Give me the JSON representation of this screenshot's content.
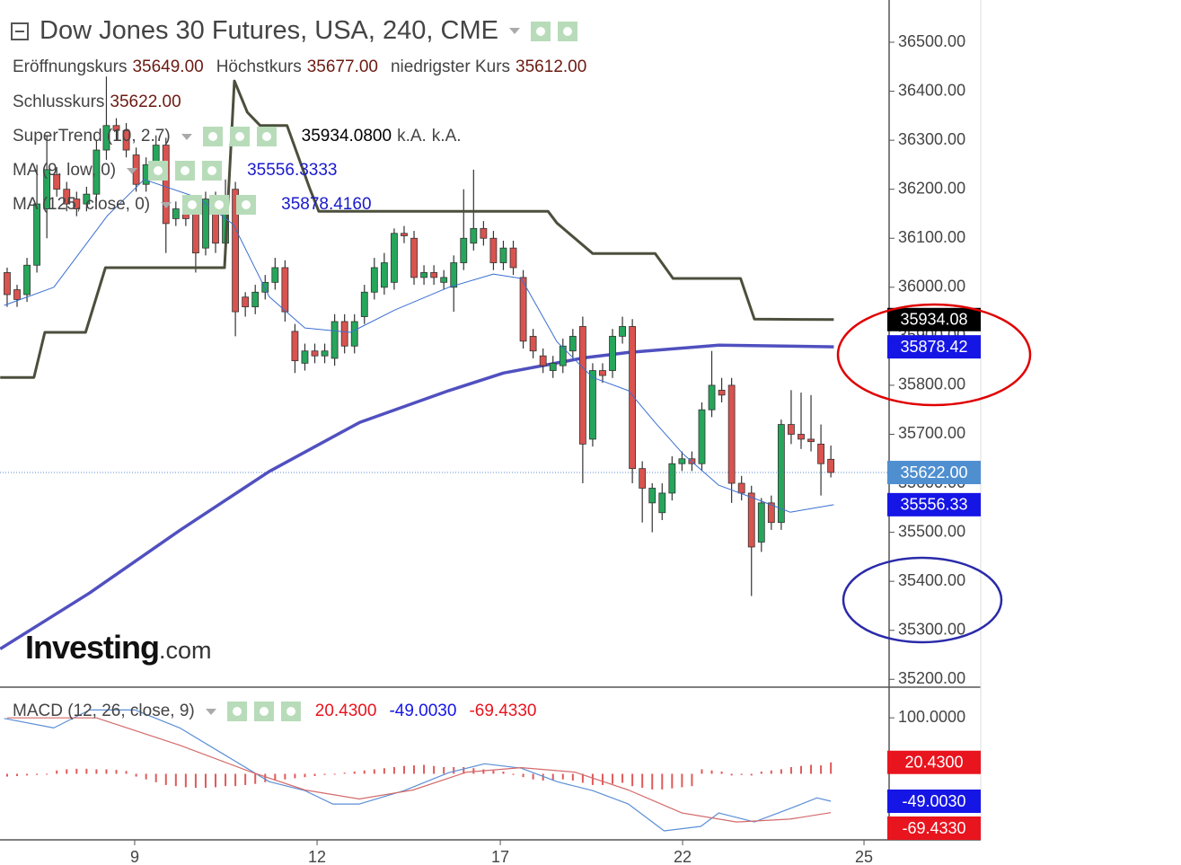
{
  "chart_data": {
    "type": "candlestick",
    "title": "Dow Jones 30 Futures, USA, 240, CME",
    "info": [
      {
        "name": "Eröffnungskurs",
        "value": 35649,
        "value_label": "35649.00"
      },
      {
        "name": "Höchstkurs",
        "value": 35677,
        "value_label": "35677.00"
      },
      {
        "name": "niedrigster Kurs",
        "value": 35612,
        "value_label": "35612.00"
      },
      {
        "name": "Schlusskurs",
        "value": 35622,
        "value_label": "35622.00"
      }
    ],
    "x": [
      0,
      1,
      2,
      3,
      4,
      5,
      6,
      7,
      8,
      9,
      10,
      11,
      12,
      13,
      14,
      15,
      16,
      17,
      18,
      19,
      20,
      21,
      22,
      23,
      24,
      25,
      26,
      27,
      28,
      29,
      30,
      31,
      32,
      33,
      34,
      35,
      36,
      37,
      38,
      39,
      40,
      41,
      42,
      43,
      44,
      45,
      46,
      47,
      48,
      49,
      50,
      51,
      52,
      53,
      54,
      55,
      56,
      57,
      58,
      59,
      60,
      61,
      62,
      63,
      64,
      65,
      66,
      67,
      68,
      69,
      70,
      71,
      72,
      73,
      74,
      75,
      76,
      77,
      78,
      79,
      80,
      81,
      82,
      83
    ],
    "open": [
      36030,
      35995,
      35985,
      36045,
      36160,
      36230,
      36200,
      36180,
      36170,
      36190,
      36280,
      36330,
      36320,
      36270,
      36210,
      36250,
      36290,
      36140,
      36150,
      36150,
      36080,
      36180,
      36090,
      36200,
      35980,
      35960,
      35990,
      36010,
      36040,
      35910,
      35845,
      35870,
      35860,
      35855,
      35930,
      35880,
      35940,
      35990,
      36000,
      36010,
      36110,
      36100,
      36020,
      36030,
      36010,
      36000,
      36050,
      36090,
      36120,
      36100,
      36050,
      36080,
      36020,
      35900,
      35860,
      35830,
      35840,
      35870,
      35920,
      35690,
      35830,
      35830,
      35900,
      35920,
      35630,
      35560,
      35540,
      35580,
      35640,
      35650,
      35640,
      35750,
      35790,
      35800,
      35600,
      35580,
      35480,
      35560,
      35520,
      35720,
      35700,
      35690,
      35680,
      35649
    ],
    "high": [
      36040,
      36005,
      36060,
      36250,
      36310,
      36245,
      36215,
      36195,
      36205,
      36300,
      36430,
      36345,
      36335,
      36285,
      36265,
      36310,
      36305,
      36175,
      36165,
      36165,
      36195,
      36195,
      36220,
      36215,
      35990,
      36005,
      36025,
      36060,
      36055,
      35925,
      35885,
      35885,
      35885,
      35945,
      35945,
      35945,
      36005,
      36060,
      36070,
      36120,
      36125,
      36115,
      36045,
      36045,
      36035,
      36065,
      36200,
      36240,
      36135,
      36115,
      36095,
      36095,
      36035,
      35915,
      35875,
      35860,
      35895,
      35915,
      35940,
      35845,
      35845,
      35915,
      35940,
      35935,
      35645,
      35600,
      35600,
      35655,
      35665,
      35665,
      35765,
      35870,
      35815,
      35815,
      35615,
      35595,
      35570,
      35575,
      35730,
      35790,
      35785,
      35780,
      35720,
      35677
    ],
    "low": [
      35960,
      35960,
      35970,
      36030,
      36100,
      36185,
      36155,
      36145,
      36155,
      36175,
      36260,
      36300,
      36265,
      36195,
      36195,
      36235,
      36070,
      36125,
      36125,
      36030,
      36065,
      36070,
      36075,
      35900,
      35940,
      35945,
      35975,
      35995,
      35930,
      35825,
      35830,
      35845,
      35845,
      35840,
      35865,
      35865,
      35925,
      35975,
      35985,
      35995,
      36090,
      36005,
      36005,
      36005,
      35995,
      35950,
      36035,
      36075,
      36085,
      36035,
      36035,
      36025,
      35875,
      35855,
      35825,
      35815,
      35825,
      35855,
      35600,
      35675,
      35805,
      35815,
      35885,
      35600,
      35520,
      35500,
      35525,
      35565,
      35625,
      35625,
      35625,
      35735,
      35765,
      35560,
      35565,
      35370,
      35460,
      35505,
      35505,
      35680,
      35670,
      35665,
      35575,
      35612
    ],
    "close": [
      35985,
      35975,
      36045,
      36170,
      36240,
      36200,
      36170,
      36160,
      36190,
      36280,
      36330,
      36320,
      36280,
      36210,
      36250,
      36290,
      36130,
      36160,
      36140,
      36070,
      36180,
      36090,
      36170,
      35950,
      35960,
      35990,
      36010,
      36040,
      35950,
      35850,
      35870,
      35860,
      35870,
      35930,
      35880,
      35930,
      35990,
      36040,
      36050,
      36110,
      36105,
      36020,
      36030,
      36020,
      36020,
      36050,
      36100,
      36120,
      36100,
      36050,
      36080,
      36040,
      35890,
      35870,
      35840,
      35845,
      35880,
      35900,
      35680,
      35830,
      35820,
      35900,
      35920,
      35630,
      35590,
      35590,
      35580,
      35640,
      35650,
      35640,
      35750,
      35800,
      35780,
      35600,
      35580,
      35470,
      35560,
      35520,
      35720,
      35700,
      35690,
      35685,
      35640,
      35622
    ],
    "up_color": "#26a65b",
    "down_color": "#d9534f",
    "lines": [
      {
        "name": "SuperTrend (10, 2.7)",
        "color": "#4b4f3c",
        "width": 3,
        "x": [
          -0.7,
          2.7,
          3.8,
          7.9,
          9.9,
          21.9,
          22.9,
          24.2,
          25.5,
          28.2,
          30.5,
          31.4,
          54.5,
          55.4,
          59,
          65.3,
          67.1,
          73.9,
          75.3,
          83.3
        ],
        "values": [
          35816,
          35816,
          35908,
          35908,
          36040,
          36040,
          36421,
          36357,
          36330,
          36330,
          36201,
          36155,
          36155,
          36131,
          36069,
          36069,
          36018,
          36018,
          35935,
          35934.08
        ],
        "legend_value": {
          "value": 35934.08,
          "label": "35934.0800",
          "color": "#000000"
        },
        "legend_notes": [
          "k.A.",
          "k.A."
        ]
      },
      {
        "name": "MA (9, low, 0)",
        "color": "#3a6fd0",
        "width": 1,
        "x": [
          -0.3,
          4.7,
          10.1,
          13.8,
          19.2,
          22.8,
          26.4,
          30,
          34.6,
          39.1,
          44.5,
          49,
          51.8,
          55.4,
          59,
          62.6,
          65.3,
          68.1,
          71.7,
          75.3,
          78.9,
          83.3
        ],
        "values": [
          35963,
          36000,
          36146,
          36220,
          36183,
          36128,
          35981,
          35917,
          35908,
          35954,
          36000,
          36027,
          36018,
          35889,
          35816,
          35789,
          35724,
          35660,
          35596,
          35569,
          35541,
          35556.3333
        ],
        "legend_value": {
          "value": 35556.3333,
          "label": "35556.3333",
          "color": "#1a1acc"
        }
      },
      {
        "name": "MA (125, close, 0)",
        "color": "#5050c0",
        "width": 3.5,
        "x": [
          -0.7,
          8.3,
          17.4,
          26.4,
          35.5,
          44.5,
          50,
          58.1,
          62.6,
          71.7,
          83.3
        ],
        "values": [
          35262,
          35376,
          35504,
          35624,
          35724,
          35789,
          35825,
          35856,
          35867,
          35882,
          35878.416
        ],
        "legend_value": {
          "value": 35878.416,
          "label": "35878.4160",
          "color": "#1a1acc"
        }
      }
    ],
    "xlim": [
      -0.72,
      88.87
    ],
    "xticks": [
      {
        "value": 12.85,
        "label": "9"
      },
      {
        "value": 31.23,
        "label": "12"
      },
      {
        "value": 49.69,
        "label": "17"
      },
      {
        "value": 68.06,
        "label": "22"
      },
      {
        "value": 86.34,
        "label": "25"
      }
    ],
    "ylim": [
      35184,
      36577
    ],
    "yticks": [
      {
        "value": 36500,
        "label": "36500.00"
      },
      {
        "value": 36400,
        "label": "36400.00"
      },
      {
        "value": 36300,
        "label": "36300.00"
      },
      {
        "value": 36200,
        "label": "36200.00"
      },
      {
        "value": 36100,
        "label": "36100.00"
      },
      {
        "value": 36000,
        "label": "36000.00"
      },
      {
        "value": 35900,
        "label": "35900.00"
      },
      {
        "value": 35800,
        "label": "35800.00"
      },
      {
        "value": 35700,
        "label": "35700.00"
      },
      {
        "value": 35600,
        "label": "35600.00"
      },
      {
        "value": 35500,
        "label": "35500.00"
      },
      {
        "value": 35400,
        "label": "35400.00"
      },
      {
        "value": 35300,
        "label": "35300.00"
      },
      {
        "value": 35200,
        "label": "35200.00"
      }
    ],
    "last_price": {
      "value": 35622,
      "color": "#5b8fd6"
    },
    "price_labels": [
      {
        "value": 35934.08,
        "label": "35934.08",
        "color": "#000000"
      },
      {
        "value": 35878.42,
        "label": "35878.42",
        "color": "#1515e6"
      },
      {
        "value": 35622,
        "label": "35622.00",
        "color": "#4f8fd0"
      },
      {
        "value": 35556.33,
        "label": "35556.33",
        "color": "#1515e6"
      }
    ],
    "macd": {
      "type": "macd",
      "name": "MACD (12, 26, close, 9)",
      "ylim": [
        -118,
        150
      ],
      "yticks": [
        {
          "value": 100,
          "label": "100.0000"
        }
      ],
      "histogram": {
        "color": "#e05a5a",
        "values": [
          -5,
          -4,
          -3,
          -2,
          0,
          6,
          8,
          9,
          9,
          8,
          8,
          7,
          5,
          -5,
          -10,
          -15,
          -20,
          -22,
          -24,
          -25,
          -25,
          -24,
          -22,
          -22,
          -20,
          -18,
          -15,
          -12,
          -10,
          -8,
          -6,
          -4,
          -2,
          -1,
          2,
          4,
          6,
          8,
          10,
          12,
          14,
          15,
          16,
          14,
          12,
          12,
          12,
          10,
          8,
          6,
          4,
          -2,
          -6,
          -10,
          -12,
          -12,
          -10,
          -12,
          -16,
          -20,
          -20,
          -18,
          -16,
          -22,
          -25,
          -28,
          -28,
          -26,
          -24,
          -22,
          8,
          6,
          4,
          -3,
          -2,
          -3,
          4,
          6,
          8,
          12,
          14,
          16,
          15,
          20.43
        ]
      },
      "lines": [
        {
          "color": "#5b8fd6",
          "x": [
            -0.3,
            4.7,
            8.3,
            12.9,
            17.4,
            21.9,
            26.4,
            30,
            32.8,
            35.5,
            40,
            44.5,
            48.1,
            51.8,
            55.4,
            59,
            62.6,
            66.2,
            69.9,
            71.7,
            75.3,
            78.9,
            81.6,
            83
          ],
          "values": [
            99,
            82,
            114,
            114,
            82,
            34,
            -14,
            -30,
            -54,
            -54,
            -30,
            2,
            18,
            10,
            -14,
            -30,
            -54,
            -102,
            -94,
            -70,
            -86,
            -62,
            -43,
            -49.003
          ]
        },
        {
          "color": "#d46a6a",
          "x": [
            0,
            9,
            17.4,
            24.6,
            30,
            35.5,
            40.9,
            46.3,
            51.8,
            57.2,
            62.6,
            68,
            73.5,
            78.9,
            83
          ],
          "values": [
            100,
            100,
            51,
            3,
            -29,
            -45,
            -29,
            3,
            11,
            3,
            -29,
            -70,
            -86,
            -81,
            -69.433
          ]
        }
      ],
      "value_labels": [
        {
          "value": 20.43,
          "label": "20.4300",
          "color": "#e8141e"
        },
        {
          "value": -49.003,
          "label": "-49.0030",
          "color": "#1515e6"
        },
        {
          "value": -69.433,
          "label": "-69.4330",
          "color": "#e8141e"
        }
      ]
    },
    "watermark": {
      "name": "Investing",
      "suffix": ".com"
    }
  }
}
